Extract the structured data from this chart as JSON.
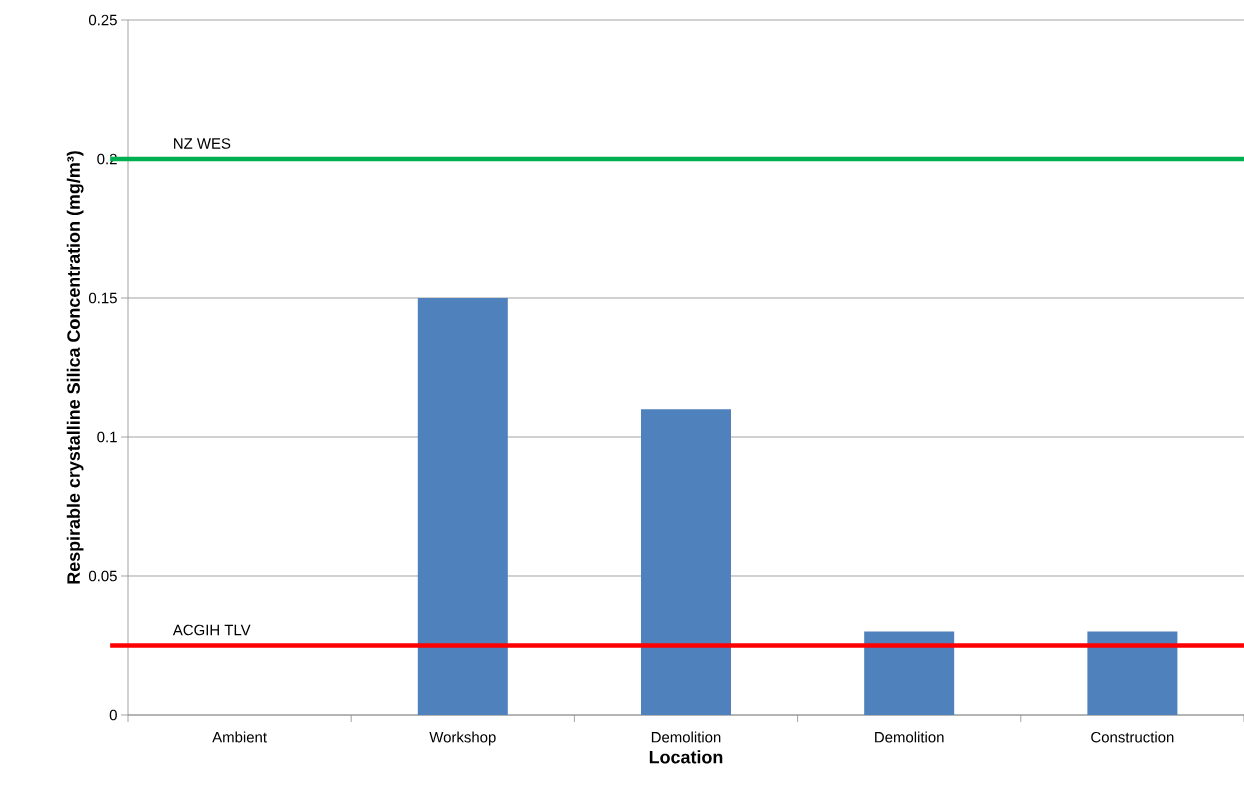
{
  "chart_data": {
    "type": "bar",
    "xlabel": "Location",
    "ylabel": "Respirable crystalline Silica Concentration (mg/m³)",
    "categories": [
      "Ambient",
      "Workshop",
      "Demolition",
      "Demolition",
      "Construction"
    ],
    "values": [
      0,
      0.15,
      0.11,
      0.03,
      0.03
    ],
    "color": "#4f81bd",
    "ylim": [
      0,
      0.25
    ],
    "yticks": [
      0,
      0.05,
      0.1,
      0.15,
      0.2,
      0.25
    ],
    "grid": "y",
    "ref_lines": [
      {
        "axis": "y",
        "value": 0.2,
        "label": "NZ WES",
        "color": "#00b050"
      },
      {
        "axis": "y",
        "value": 0.025,
        "label": "ACGIH TLV",
        "color": "#ff0000"
      }
    ]
  }
}
